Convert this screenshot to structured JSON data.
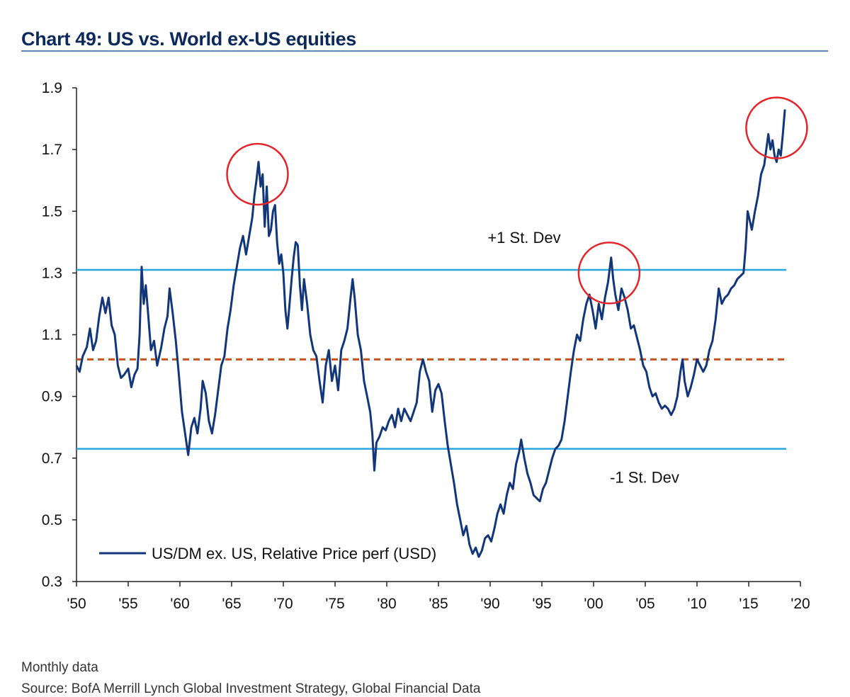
{
  "title": "Chart 49: US vs. World ex-US equities",
  "footnote_frequency": "Monthly data",
  "footnote_source": "Source: BofA Merrill Lynch Global Investment Strategy, Global Financial Data",
  "colors": {
    "series": "#12367a",
    "std_lines": "#29a6dc",
    "mean_line": "#c4541c",
    "highlight": "#e3242b",
    "title": "#0b2a5b"
  },
  "chart_data": {
    "type": "line",
    "xlim": [
      1950,
      2020
    ],
    "ylim": [
      0.3,
      1.9
    ],
    "x_ticks": [
      {
        "value": 1950,
        "label": "'50"
      },
      {
        "value": 1955,
        "label": "'55"
      },
      {
        "value": 1960,
        "label": "'60"
      },
      {
        "value": 1965,
        "label": "'65"
      },
      {
        "value": 1970,
        "label": "'70"
      },
      {
        "value": 1975,
        "label": "'75"
      },
      {
        "value": 1980,
        "label": "'80"
      },
      {
        "value": 1985,
        "label": "'85"
      },
      {
        "value": 1990,
        "label": "'90"
      },
      {
        "value": 1995,
        "label": "'95"
      },
      {
        "value": 2000,
        "label": "'00"
      },
      {
        "value": 2005,
        "label": "'05"
      },
      {
        "value": 2010,
        "label": "'10"
      },
      {
        "value": 2015,
        "label": "'15"
      },
      {
        "value": 2020,
        "label": "'20"
      }
    ],
    "y_ticks": [
      {
        "value": 1.9,
        "label": "1.9"
      },
      {
        "value": 1.7,
        "label": "1.7"
      },
      {
        "value": 1.5,
        "label": "1.5"
      },
      {
        "value": 1.3,
        "label": "1.3"
      },
      {
        "value": 1.1,
        "label": "1.1"
      },
      {
        "value": 0.9,
        "label": "0.9"
      },
      {
        "value": 0.7,
        "label": "0.7"
      },
      {
        "value": 0.5,
        "label": "0.5"
      },
      {
        "value": 0.3,
        "label": "0.3"
      }
    ],
    "legend": "bottom-left",
    "grid": false,
    "series": [
      {
        "name": "US/DM ex. US, Relative Price perf (USD)",
        "points": [
          [
            1950.0,
            1.0
          ],
          [
            1950.3,
            0.98
          ],
          [
            1950.6,
            1.03
          ],
          [
            1951.0,
            1.06
          ],
          [
            1951.3,
            1.12
          ],
          [
            1951.6,
            1.05
          ],
          [
            1951.9,
            1.08
          ],
          [
            1952.2,
            1.16
          ],
          [
            1952.5,
            1.22
          ],
          [
            1952.8,
            1.17
          ],
          [
            1953.1,
            1.22
          ],
          [
            1953.4,
            1.13
          ],
          [
            1953.7,
            1.1
          ],
          [
            1954.0,
            1.0
          ],
          [
            1954.3,
            0.96
          ],
          [
            1954.6,
            0.97
          ],
          [
            1955.0,
            0.99
          ],
          [
            1955.3,
            0.93
          ],
          [
            1955.6,
            0.97
          ],
          [
            1955.9,
            0.99
          ],
          [
            1956.1,
            1.1
          ],
          [
            1956.3,
            1.32
          ],
          [
            1956.5,
            1.2
          ],
          [
            1956.7,
            1.26
          ],
          [
            1956.9,
            1.18
          ],
          [
            1957.2,
            1.05
          ],
          [
            1957.5,
            1.08
          ],
          [
            1957.8,
            1.0
          ],
          [
            1958.2,
            1.06
          ],
          [
            1958.5,
            1.12
          ],
          [
            1958.8,
            1.16
          ],
          [
            1959.0,
            1.25
          ],
          [
            1959.3,
            1.17
          ],
          [
            1959.6,
            1.08
          ],
          [
            1959.9,
            0.97
          ],
          [
            1960.2,
            0.85
          ],
          [
            1960.5,
            0.78
          ],
          [
            1960.8,
            0.71
          ],
          [
            1961.1,
            0.8
          ],
          [
            1961.4,
            0.83
          ],
          [
            1961.7,
            0.78
          ],
          [
            1962.0,
            0.86
          ],
          [
            1962.2,
            0.95
          ],
          [
            1962.5,
            0.91
          ],
          [
            1962.8,
            0.82
          ],
          [
            1963.1,
            0.78
          ],
          [
            1963.4,
            0.84
          ],
          [
            1963.7,
            0.92
          ],
          [
            1964.0,
            1.0
          ],
          [
            1964.3,
            1.03
          ],
          [
            1964.6,
            1.12
          ],
          [
            1964.9,
            1.18
          ],
          [
            1965.2,
            1.26
          ],
          [
            1965.5,
            1.32
          ],
          [
            1965.8,
            1.38
          ],
          [
            1966.1,
            1.42
          ],
          [
            1966.4,
            1.36
          ],
          [
            1966.7,
            1.42
          ],
          [
            1967.0,
            1.48
          ],
          [
            1967.2,
            1.55
          ],
          [
            1967.4,
            1.6
          ],
          [
            1967.6,
            1.66
          ],
          [
            1967.8,
            1.58
          ],
          [
            1968.0,
            1.62
          ],
          [
            1968.2,
            1.45
          ],
          [
            1968.4,
            1.58
          ],
          [
            1968.6,
            1.42
          ],
          [
            1968.8,
            1.44
          ],
          [
            1969.0,
            1.5
          ],
          [
            1969.2,
            1.52
          ],
          [
            1969.4,
            1.4
          ],
          [
            1969.6,
            1.33
          ],
          [
            1969.8,
            1.36
          ],
          [
            1970.0,
            1.3
          ],
          [
            1970.2,
            1.18
          ],
          [
            1970.4,
            1.12
          ],
          [
            1970.6,
            1.2
          ],
          [
            1970.8,
            1.28
          ],
          [
            1971.0,
            1.35
          ],
          [
            1971.2,
            1.4
          ],
          [
            1971.4,
            1.39
          ],
          [
            1971.6,
            1.26
          ],
          [
            1971.8,
            1.18
          ],
          [
            1972.0,
            1.28
          ],
          [
            1972.3,
            1.2
          ],
          [
            1972.6,
            1.1
          ],
          [
            1972.9,
            1.05
          ],
          [
            1973.2,
            1.03
          ],
          [
            1973.5,
            0.95
          ],
          [
            1973.8,
            0.88
          ],
          [
            1974.1,
            1.0
          ],
          [
            1974.4,
            1.05
          ],
          [
            1974.7,
            0.95
          ],
          [
            1975.0,
            1.0
          ],
          [
            1975.3,
            0.92
          ],
          [
            1975.6,
            1.05
          ],
          [
            1975.9,
            1.08
          ],
          [
            1976.2,
            1.12
          ],
          [
            1976.5,
            1.22
          ],
          [
            1976.7,
            1.28
          ],
          [
            1976.9,
            1.22
          ],
          [
            1977.2,
            1.1
          ],
          [
            1977.5,
            1.05
          ],
          [
            1977.8,
            0.95
          ],
          [
            1978.1,
            0.9
          ],
          [
            1978.4,
            0.85
          ],
          [
            1978.6,
            0.78
          ],
          [
            1978.8,
            0.66
          ],
          [
            1979.0,
            0.75
          ],
          [
            1979.3,
            0.77
          ],
          [
            1979.6,
            0.8
          ],
          [
            1979.9,
            0.79
          ],
          [
            1980.2,
            0.82
          ],
          [
            1980.5,
            0.84
          ],
          [
            1980.8,
            0.8
          ],
          [
            1981.1,
            0.86
          ],
          [
            1981.4,
            0.82
          ],
          [
            1981.7,
            0.86
          ],
          [
            1982.0,
            0.84
          ],
          [
            1982.3,
            0.82
          ],
          [
            1982.6,
            0.85
          ],
          [
            1982.9,
            0.88
          ],
          [
            1983.2,
            0.98
          ],
          [
            1983.5,
            1.02
          ],
          [
            1983.8,
            0.98
          ],
          [
            1984.1,
            0.95
          ],
          [
            1984.4,
            0.85
          ],
          [
            1984.7,
            0.92
          ],
          [
            1985.0,
            0.94
          ],
          [
            1985.3,
            0.91
          ],
          [
            1985.6,
            0.82
          ],
          [
            1985.9,
            0.74
          ],
          [
            1986.2,
            0.68
          ],
          [
            1986.5,
            0.62
          ],
          [
            1986.8,
            0.55
          ],
          [
            1987.1,
            0.5
          ],
          [
            1987.4,
            0.45
          ],
          [
            1987.7,
            0.48
          ],
          [
            1988.0,
            0.42
          ],
          [
            1988.3,
            0.39
          ],
          [
            1988.6,
            0.41
          ],
          [
            1988.9,
            0.38
          ],
          [
            1989.2,
            0.4
          ],
          [
            1989.5,
            0.44
          ],
          [
            1989.8,
            0.45
          ],
          [
            1990.1,
            0.43
          ],
          [
            1990.4,
            0.47
          ],
          [
            1990.7,
            0.52
          ],
          [
            1991.0,
            0.55
          ],
          [
            1991.3,
            0.52
          ],
          [
            1991.6,
            0.58
          ],
          [
            1991.9,
            0.62
          ],
          [
            1992.2,
            0.6
          ],
          [
            1992.5,
            0.68
          ],
          [
            1992.8,
            0.72
          ],
          [
            1993.0,
            0.76
          ],
          [
            1993.3,
            0.7
          ],
          [
            1993.6,
            0.65
          ],
          [
            1993.9,
            0.62
          ],
          [
            1994.2,
            0.58
          ],
          [
            1994.5,
            0.57
          ],
          [
            1994.8,
            0.56
          ],
          [
            1995.1,
            0.6
          ],
          [
            1995.4,
            0.62
          ],
          [
            1995.7,
            0.66
          ],
          [
            1996.0,
            0.7
          ],
          [
            1996.3,
            0.73
          ],
          [
            1996.6,
            0.74
          ],
          [
            1996.9,
            0.76
          ],
          [
            1997.2,
            0.82
          ],
          [
            1997.5,
            0.9
          ],
          [
            1997.8,
            0.98
          ],
          [
            1998.1,
            1.05
          ],
          [
            1998.4,
            1.1
          ],
          [
            1998.7,
            1.08
          ],
          [
            1999.0,
            1.15
          ],
          [
            1999.3,
            1.2
          ],
          [
            1999.6,
            1.23
          ],
          [
            1999.9,
            1.18
          ],
          [
            2000.2,
            1.12
          ],
          [
            2000.5,
            1.2
          ],
          [
            2000.8,
            1.15
          ],
          [
            2001.1,
            1.22
          ],
          [
            2001.4,
            1.27
          ],
          [
            2001.7,
            1.35
          ],
          [
            2001.9,
            1.28
          ],
          [
            2002.1,
            1.23
          ],
          [
            2002.4,
            1.18
          ],
          [
            2002.7,
            1.25
          ],
          [
            2003.0,
            1.22
          ],
          [
            2003.3,
            1.18
          ],
          [
            2003.6,
            1.12
          ],
          [
            2003.9,
            1.13
          ],
          [
            2004.2,
            1.09
          ],
          [
            2004.5,
            1.05
          ],
          [
            2004.8,
            1.0
          ],
          [
            2005.1,
            0.98
          ],
          [
            2005.4,
            0.93
          ],
          [
            2005.7,
            0.9
          ],
          [
            2006.0,
            0.91
          ],
          [
            2006.3,
            0.88
          ],
          [
            2006.6,
            0.86
          ],
          [
            2006.9,
            0.87
          ],
          [
            2007.2,
            0.86
          ],
          [
            2007.5,
            0.84
          ],
          [
            2007.8,
            0.86
          ],
          [
            2008.1,
            0.9
          ],
          [
            2008.4,
            0.98
          ],
          [
            2008.6,
            1.02
          ],
          [
            2008.8,
            0.95
          ],
          [
            2009.1,
            0.9
          ],
          [
            2009.4,
            0.93
          ],
          [
            2009.7,
            0.97
          ],
          [
            2010.0,
            1.02
          ],
          [
            2010.3,
            1.0
          ],
          [
            2010.6,
            0.98
          ],
          [
            2010.9,
            1.0
          ],
          [
            2011.2,
            1.05
          ],
          [
            2011.5,
            1.08
          ],
          [
            2011.8,
            1.15
          ],
          [
            2012.1,
            1.25
          ],
          [
            2012.4,
            1.2
          ],
          [
            2012.7,
            1.22
          ],
          [
            2013.0,
            1.23
          ],
          [
            2013.3,
            1.25
          ],
          [
            2013.6,
            1.26
          ],
          [
            2013.9,
            1.28
          ],
          [
            2014.2,
            1.29
          ],
          [
            2014.5,
            1.3
          ],
          [
            2014.7,
            1.38
          ],
          [
            2014.9,
            1.5
          ],
          [
            2015.1,
            1.47
          ],
          [
            2015.3,
            1.44
          ],
          [
            2015.6,
            1.5
          ],
          [
            2015.9,
            1.55
          ],
          [
            2016.2,
            1.62
          ],
          [
            2016.5,
            1.65
          ],
          [
            2016.7,
            1.7
          ],
          [
            2016.9,
            1.75
          ],
          [
            2017.1,
            1.7
          ],
          [
            2017.3,
            1.73
          ],
          [
            2017.5,
            1.68
          ],
          [
            2017.7,
            1.66
          ],
          [
            2017.9,
            1.7
          ],
          [
            2018.1,
            1.68
          ],
          [
            2018.3,
            1.75
          ],
          [
            2018.5,
            1.83
          ]
        ]
      }
    ],
    "reference_lines": [
      {
        "kind": "plus_one_std",
        "value": 1.31,
        "label": "+1 St. Dev"
      },
      {
        "kind": "mean",
        "value": 1.02,
        "label": ""
      },
      {
        "kind": "minus_one_std",
        "value": 0.73,
        "label": "-1 St. Dev"
      }
    ],
    "highlights": [
      {
        "x": 1967.5,
        "y": 1.62
      },
      {
        "x": 2001.5,
        "y": 1.3
      },
      {
        "x": 2017.7,
        "y": 1.77
      }
    ]
  }
}
